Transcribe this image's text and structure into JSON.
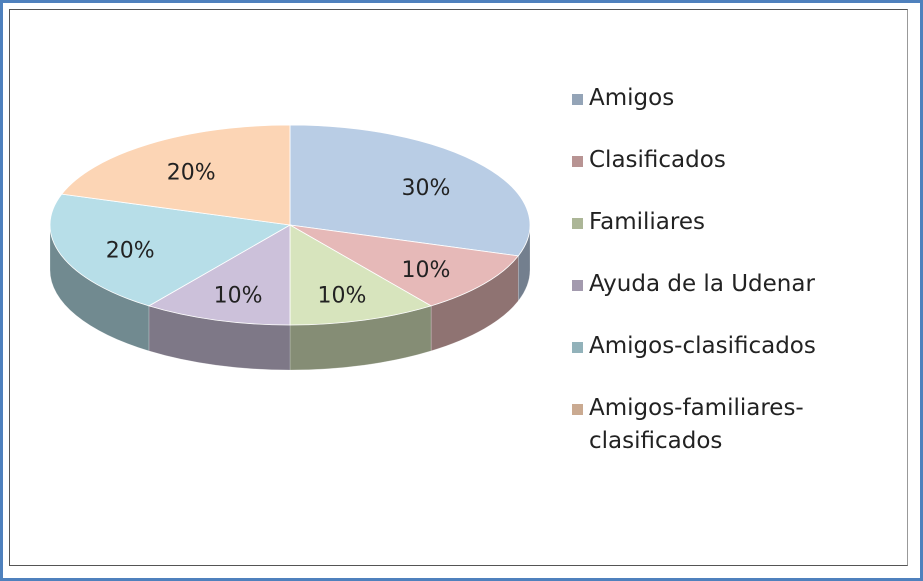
{
  "chart_data": {
    "type": "pie",
    "categories": [
      "Amigos",
      "Clasificados",
      "Familiares",
      "Ayuda de la Udenar",
      "Amigos-clasificados",
      "Amigos-familiares-clasificados"
    ],
    "values": [
      30,
      10,
      10,
      10,
      20,
      20
    ],
    "value_labels": [
      "30%",
      "10%",
      "10%",
      "10%",
      "20%",
      "20%"
    ],
    "colors": [
      "#b9cde5",
      "#e6b9b8",
      "#d7e4bd",
      "#ccc1da",
      "#b7dee8",
      "#fcd5b5"
    ]
  }
}
